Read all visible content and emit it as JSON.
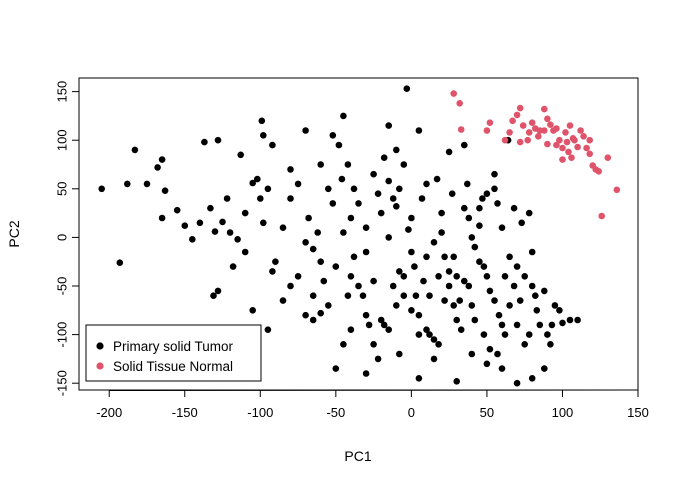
{
  "chart_data": {
    "type": "scatter",
    "xlabel": "PC1",
    "ylabel": "PC2",
    "xlim": [
      -220,
      150
    ],
    "ylim": [
      -157,
      164
    ],
    "xticks": [
      -200,
      -150,
      -100,
      -50,
      0,
      50,
      100,
      150
    ],
    "yticks": [
      -150,
      -100,
      -50,
      0,
      50,
      100,
      150
    ],
    "grid": false,
    "legend_position": "bottom-left",
    "series": [
      {
        "name": "Primary solid Tumor",
        "color": "#000000",
        "points": [
          [
            -205,
            50
          ],
          [
            -193,
            -26
          ],
          [
            -188,
            55
          ],
          [
            -183,
            90
          ],
          [
            -175,
            55
          ],
          [
            -168,
            72
          ],
          [
            -165,
            80
          ],
          [
            -163,
            48
          ],
          [
            -165,
            20
          ],
          [
            -155,
            28
          ],
          [
            -150,
            12
          ],
          [
            -145,
            -2
          ],
          [
            -137,
            98
          ],
          [
            -128,
            100
          ],
          [
            -133,
            30
          ],
          [
            -130,
            6
          ],
          [
            -131,
            -60
          ],
          [
            -125,
            16
          ],
          [
            -120,
            5
          ],
          [
            -128,
            -55
          ],
          [
            -115,
            -2
          ],
          [
            -113,
            85
          ],
          [
            -110,
            25
          ],
          [
            -105,
            56
          ],
          [
            -102,
            60
          ],
          [
            -98,
            105
          ],
          [
            -99,
            120
          ],
          [
            -98,
            15
          ],
          [
            -95,
            50
          ],
          [
            -92,
            -35
          ],
          [
            -95,
            -95
          ],
          [
            -80,
            40
          ],
          [
            -75,
            55
          ],
          [
            -70,
            110
          ],
          [
            -68,
            20
          ],
          [
            -65,
            -12
          ],
          [
            -62,
            5
          ],
          [
            -60,
            -78
          ],
          [
            -55,
            50
          ],
          [
            -52,
            105
          ],
          [
            -48,
            95
          ],
          [
            -46,
            60
          ],
          [
            -42,
            75
          ],
          [
            -40,
            20
          ],
          [
            -38,
            -20
          ],
          [
            -35,
            -50
          ],
          [
            -32,
            -60
          ],
          [
            -30,
            -80
          ],
          [
            -28,
            -90
          ],
          [
            -25,
            -110
          ],
          [
            -22,
            -125
          ],
          [
            -18,
            82
          ],
          [
            -15,
            58
          ],
          [
            -12,
            40
          ],
          [
            -10,
            32
          ],
          [
            -8,
            -35
          ],
          [
            -5,
            -40
          ],
          [
            -3,
            153
          ],
          [
            -2,
            8
          ],
          [
            0,
            -15
          ],
          [
            3,
            -60
          ],
          [
            5,
            -80
          ],
          [
            10,
            -95
          ],
          [
            12,
            -100
          ],
          [
            15,
            -105
          ],
          [
            18,
            -110
          ],
          [
            20,
            25
          ],
          [
            22,
            -20
          ],
          [
            25,
            -50
          ],
          [
            28,
            -70
          ],
          [
            30,
            -85
          ],
          [
            33,
            -95
          ],
          [
            35,
            30
          ],
          [
            38,
            20
          ],
          [
            40,
            0
          ],
          [
            42,
            -10
          ],
          [
            45,
            12
          ],
          [
            48,
            -30
          ],
          [
            50,
            -40
          ],
          [
            52,
            -55
          ],
          [
            55,
            -65
          ],
          [
            58,
            -80
          ],
          [
            60,
            -90
          ],
          [
            62,
            -100
          ],
          [
            64,
            100
          ],
          [
            65,
            -70
          ],
          [
            68,
            30
          ],
          [
            70,
            -90
          ],
          [
            73,
            15
          ],
          [
            75,
            -110
          ],
          [
            78,
            25
          ],
          [
            80,
            -50
          ],
          [
            82,
            -60
          ],
          [
            85,
            -90
          ],
          [
            88,
            -55
          ],
          [
            90,
            -100
          ],
          [
            92,
            -110
          ],
          [
            95,
            -70
          ],
          [
            98,
            -75
          ],
          [
            100,
            -88
          ],
          [
            105,
            -85
          ],
          [
            110,
            -85
          ],
          [
            -20,
            -85
          ],
          [
            -15,
            -95
          ],
          [
            -10,
            -70
          ],
          [
            -5,
            -60
          ],
          [
            0,
            -75
          ],
          [
            5,
            -100
          ],
          [
            -45,
            5
          ],
          [
            -60,
            -25
          ],
          [
            -70,
            -5
          ],
          [
            -80,
            -50
          ],
          [
            -90,
            -25
          ],
          [
            -100,
            40
          ],
          [
            -110,
            -15
          ],
          [
            -85,
            10
          ],
          [
            -75,
            -40
          ],
          [
            -65,
            -60
          ],
          [
            -50,
            -30
          ],
          [
            -30,
            10
          ],
          [
            -25,
            65
          ],
          [
            -20,
            25
          ],
          [
            -10,
            90
          ],
          [
            10,
            55
          ],
          [
            15,
            -5
          ],
          [
            20,
            5
          ],
          [
            25,
            -35
          ],
          [
            30,
            -40
          ],
          [
            35,
            -45
          ],
          [
            40,
            -70
          ],
          [
            45,
            -25
          ],
          [
            50,
            45
          ],
          [
            55,
            50
          ],
          [
            60,
            10
          ],
          [
            65,
            -20
          ],
          [
            70,
            -30
          ],
          [
            75,
            -40
          ],
          [
            80,
            -15
          ],
          [
            -40,
            -40
          ],
          [
            -35,
            35
          ],
          [
            -30,
            -15
          ],
          [
            -15,
            0
          ],
          [
            0,
            20
          ],
          [
            10,
            -20
          ],
          [
            -55,
            -70
          ],
          [
            -45,
            -110
          ],
          [
            -40,
            -95
          ],
          [
            -65,
            -85
          ],
          [
            -85,
            -65
          ],
          [
            -105,
            -75
          ],
          [
            -118,
            -30
          ],
          [
            -122,
            40
          ],
          [
            -140,
            15
          ],
          [
            -92,
            95
          ],
          [
            -45,
            125
          ],
          [
            -15,
            115
          ],
          [
            -5,
            75
          ],
          [
            5,
            110
          ],
          [
            25,
            88
          ],
          [
            35,
            95
          ],
          [
            45,
            30
          ],
          [
            55,
            65
          ],
          [
            -70,
            -80
          ],
          [
            -58,
            -45
          ],
          [
            -42,
            -60
          ],
          [
            -25,
            -45
          ],
          [
            -12,
            -50
          ],
          [
            2,
            -30
          ],
          [
            8,
            -45
          ],
          [
            12,
            -60
          ],
          [
            18,
            -40
          ],
          [
            22,
            -65
          ],
          [
            28,
            -20
          ],
          [
            32,
            -65
          ],
          [
            38,
            -50
          ],
          [
            42,
            -85
          ],
          [
            48,
            -100
          ],
          [
            52,
            -115
          ],
          [
            57,
            -120
          ],
          [
            62,
            -40
          ],
          [
            68,
            -50
          ],
          [
            72,
            -65
          ],
          [
            78,
            -100
          ],
          [
            83,
            -75
          ],
          [
            88,
            -135
          ],
          [
            93,
            -90
          ],
          [
            -80,
            70
          ],
          [
            -60,
            75
          ],
          [
            -52,
            35
          ],
          [
            -38,
            50
          ],
          [
            -22,
            45
          ],
          [
            -8,
            50
          ],
          [
            7,
            40
          ],
          [
            17,
            60
          ],
          [
            27,
            45
          ],
          [
            37,
            55
          ],
          [
            47,
            40
          ],
          [
            57,
            35
          ],
          [
            -30,
            -140
          ],
          [
            -50,
            -135
          ],
          [
            5,
            -145
          ],
          [
            30,
            -148
          ],
          [
            50,
            -130
          ],
          [
            70,
            -150
          ],
          [
            -18,
            -90
          ],
          [
            -8,
            -120
          ],
          [
            15,
            -125
          ],
          [
            40,
            -120
          ],
          [
            60,
            -135
          ],
          [
            80,
            -145
          ]
        ]
      },
      {
        "name": "Solid Tissue Normal",
        "color": "#DF536B",
        "points": [
          [
            28,
            148
          ],
          [
            32,
            138
          ],
          [
            33,
            111
          ],
          [
            50,
            110
          ],
          [
            52,
            118
          ],
          [
            62,
            100
          ],
          [
            65,
            108
          ],
          [
            67,
            120
          ],
          [
            70,
            126
          ],
          [
            72,
            133
          ],
          [
            74,
            115
          ],
          [
            77,
            100
          ],
          [
            80,
            118
          ],
          [
            82,
            112
          ],
          [
            85,
            110
          ],
          [
            88,
            110
          ],
          [
            90,
            122
          ],
          [
            92,
            116
          ],
          [
            94,
            110
          ],
          [
            96,
            95
          ],
          [
            98,
            100
          ],
          [
            100,
            92
          ],
          [
            102,
            108
          ],
          [
            103,
            98
          ],
          [
            105,
            115
          ],
          [
            107,
            102
          ],
          [
            110,
            93
          ],
          [
            112,
            110
          ],
          [
            114,
            104
          ],
          [
            116,
            92
          ],
          [
            118,
            86
          ],
          [
            120,
            74
          ],
          [
            122,
            70
          ],
          [
            124,
            68
          ],
          [
            126,
            22
          ],
          [
            130,
            82
          ],
          [
            136,
            49
          ],
          [
            88,
            132
          ],
          [
            96,
            112
          ],
          [
            104,
            88
          ],
          [
            108,
            100
          ],
          [
            118,
            100
          ],
          [
            72,
            98
          ],
          [
            78,
            108
          ],
          [
            84,
            104
          ],
          [
            90,
            96
          ],
          [
            100,
            80
          ],
          [
            106,
            82
          ]
        ]
      }
    ]
  }
}
